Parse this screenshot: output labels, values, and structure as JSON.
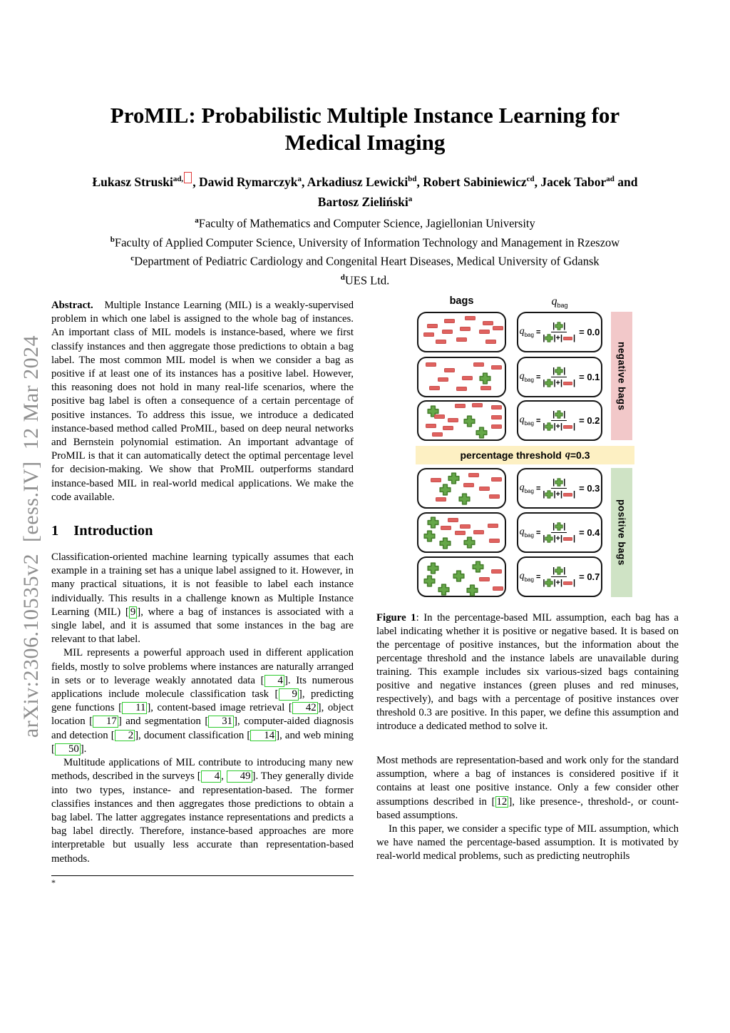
{
  "arxiv_sidebar": "arXiv:2306.10535v2  [eess.IV]  12 Mar 2024",
  "title": {
    "line1": "ProMIL: Probabilistic Multiple Instance Learning for",
    "line2": "Medical Imaging"
  },
  "authors": {
    "line1": [
      {
        "t": "Łukasz Struski"
      },
      {
        "sup": "ad,"
      },
      {
        "redbox": true
      },
      {
        "t": ", Dawid Rymarczyk"
      },
      {
        "sup": "a"
      },
      {
        "t": ", Arkadiusz Lewicki"
      },
      {
        "sup": "bd"
      },
      {
        "t": ", Robert Sabiniewicz"
      },
      {
        "sup": "cd"
      },
      {
        "t": ", Jacek Tabor"
      },
      {
        "sup": "ad"
      },
      {
        "t": " and"
      }
    ],
    "line2": [
      {
        "t": "Bartosz Zieliński"
      },
      {
        "sup": "a"
      }
    ]
  },
  "affiliations": [
    [
      {
        "sup": "a"
      },
      {
        "t": "Faculty of Mathematics and Computer Science, Jagiellonian University"
      }
    ],
    [
      {
        "sup": "b"
      },
      {
        "t": "Faculty of Applied Computer Science, University of Information Technology and Management in Rzeszow"
      }
    ],
    [
      {
        "sup": "c"
      },
      {
        "t": "Department of Pediatric Cardiology and Congenital Heart Diseases, Medical University of Gdansk"
      }
    ],
    [
      {
        "sup": "d"
      },
      {
        "t": "UES Ltd."
      }
    ]
  ],
  "abstract": [
    {
      "b": "Abstract."
    },
    {
      "t": "   Multiple Instance Learning (MIL) is a weakly-supervised problem in which one label is assigned to the whole bag of instances. An important class of MIL models is instance-based, where we first classify instances and then aggregate those predictions to obtain a bag label. The most common MIL model is when we consider a bag as positive if at least one of its instances has a positive label. However, this reasoning does not hold in many real-life scenarios, where the positive bag label is often a consequence of a certain percentage of positive instances. To address this issue, we introduce a dedicated instance-based method called ProMIL, based on deep neural networks and Bernstein polynomial estimation. An important advantage of ProMIL is that it can automatically detect the optimal percentage level for decision-making. We show that ProMIL outperforms standard instance-based MIL in real-world medical applications. We make the code available."
    }
  ],
  "introduction": {
    "number": "1",
    "title": "Introduction",
    "paragraphs": [
      [
        {
          "t": "Classification-oriented machine learning typically assumes that each example in a training set has a unique label assigned to it. However, in many practical situations, it is not feasible to label each instance individually. This results in a challenge known as Multiple Instance Learning (MIL) ["
        },
        {
          "cite": "9"
        },
        {
          "t": "], where a bag of instances is associated with a single label, and it is assumed that some instances in the bag are relevant to that label."
        }
      ],
      [
        {
          "t": "MIL represents a powerful approach used in different application fields, mostly to solve problems where instances are naturally arranged in sets or to leverage weakly annotated data ["
        },
        {
          "cite": "4"
        },
        {
          "t": "]. Its numerous applications include molecule classification task ["
        },
        {
          "cite": "9"
        },
        {
          "t": "], predicting gene functions ["
        },
        {
          "cite": "11"
        },
        {
          "t": "], content-based image retrieval ["
        },
        {
          "cite": "42"
        },
        {
          "t": "], object location ["
        },
        {
          "cite": "17"
        },
        {
          "t": "] and segmentation ["
        },
        {
          "cite": "31"
        },
        {
          "t": "], computer-aided diagnosis and detection ["
        },
        {
          "cite": "2"
        },
        {
          "t": "], document classification ["
        },
        {
          "cite": "14"
        },
        {
          "t": "], and web mining ["
        },
        {
          "cite": "50"
        },
        {
          "t": "]."
        }
      ],
      [
        {
          "t": "Multitude applications of MIL contribute to introducing many new methods, described in the surveys ["
        },
        {
          "cite": "4"
        },
        {
          "t": ", "
        },
        {
          "cite": "49"
        },
        {
          "t": "]. They generally divide into two types, instance- and representation-based. The former classifies instances and then aggregates those predictions to obtain a bag label. The latter aggregates instance representations and predicts a bag label directly. Therefore, instance-based approaches are more interpretable but usually less accurate than representation-based methods."
        }
      ]
    ]
  },
  "footnote_marker": "*",
  "figure": {
    "header_bags": "bags",
    "qbag_base": "q",
    "qbag_sub": "bag",
    "threshold_text": "percentage threshold",
    "threshold_q": "q",
    "threshold_value": "=0.3",
    "negative_label": "negative bags",
    "positive_label": "positive bags",
    "formula": {
      "lhs_base": "q",
      "lhs_sub": "bag",
      "eq": "=",
      "result_eq": "="
    },
    "rows": [
      {
        "group": "negative",
        "q": "0.0",
        "items": [
          {
            "x": 10,
            "y": 28,
            "k": "m"
          },
          {
            "x": 30,
            "y": 16,
            "k": "m"
          },
          {
            "x": 54,
            "y": 8,
            "k": "m"
          },
          {
            "x": 74,
            "y": 20,
            "k": "m"
          },
          {
            "x": 6,
            "y": 50,
            "k": "m"
          },
          {
            "x": 27,
            "y": 44,
            "k": "m"
          },
          {
            "x": 48,
            "y": 36,
            "k": "m"
          },
          {
            "x": 70,
            "y": 44,
            "k": "m"
          },
          {
            "x": 86,
            "y": 34,
            "k": "m"
          },
          {
            "x": 20,
            "y": 70,
            "k": "m"
          },
          {
            "x": 44,
            "y": 64,
            "k": "m"
          },
          {
            "x": 78,
            "y": 70,
            "k": "m"
          }
        ]
      },
      {
        "group": "negative",
        "q": "0.1",
        "items": [
          {
            "x": 8,
            "y": 12,
            "k": "m"
          },
          {
            "x": 30,
            "y": 26,
            "k": "m"
          },
          {
            "x": 64,
            "y": 12,
            "k": "m"
          },
          {
            "x": 84,
            "y": 18,
            "k": "m"
          },
          {
            "x": 22,
            "y": 50,
            "k": "m"
          },
          {
            "x": 50,
            "y": 48,
            "k": "m"
          },
          {
            "x": 70,
            "y": 38,
            "k": "p"
          },
          {
            "x": 12,
            "y": 74,
            "k": "m"
          },
          {
            "x": 44,
            "y": 76,
            "k": "m"
          },
          {
            "x": 72,
            "y": 74,
            "k": "m"
          }
        ]
      },
      {
        "group": "negative",
        "q": "0.2",
        "items": [
          {
            "x": 10,
            "y": 10,
            "k": "p"
          },
          {
            "x": 42,
            "y": 6,
            "k": "m"
          },
          {
            "x": 62,
            "y": 4,
            "k": "m"
          },
          {
            "x": 84,
            "y": 10,
            "k": "m"
          },
          {
            "x": 18,
            "y": 34,
            "k": "m"
          },
          {
            "x": 34,
            "y": 44,
            "k": "m"
          },
          {
            "x": 52,
            "y": 36,
            "k": "p"
          },
          {
            "x": 84,
            "y": 36,
            "k": "m"
          },
          {
            "x": 8,
            "y": 58,
            "k": "m"
          },
          {
            "x": 28,
            "y": 64,
            "k": "m"
          },
          {
            "x": 66,
            "y": 66,
            "k": "p"
          },
          {
            "x": 16,
            "y": 82,
            "k": "m"
          },
          {
            "x": 84,
            "y": 60,
            "k": "m"
          }
        ]
      },
      {
        "group": "positive",
        "q": "0.3",
        "items": [
          {
            "x": 34,
            "y": 8,
            "k": "p"
          },
          {
            "x": 14,
            "y": 22,
            "k": "m"
          },
          {
            "x": 58,
            "y": 10,
            "k": "m"
          },
          {
            "x": 84,
            "y": 20,
            "k": "m"
          },
          {
            "x": 24,
            "y": 38,
            "k": "p"
          },
          {
            "x": 52,
            "y": 36,
            "k": "m"
          },
          {
            "x": 70,
            "y": 46,
            "k": "m"
          },
          {
            "x": 46,
            "y": 62,
            "k": "p"
          },
          {
            "x": 20,
            "y": 74,
            "k": "m"
          },
          {
            "x": 82,
            "y": 66,
            "k": "m"
          }
        ]
      },
      {
        "group": "positive",
        "q": "0.4",
        "items": [
          {
            "x": 10,
            "y": 8,
            "k": "p"
          },
          {
            "x": 34,
            "y": 12,
            "k": "m"
          },
          {
            "x": 26,
            "y": 32,
            "k": "m"
          },
          {
            "x": 48,
            "y": 28,
            "k": "m"
          },
          {
            "x": 80,
            "y": 26,
            "k": "m"
          },
          {
            "x": 6,
            "y": 44,
            "k": "p"
          },
          {
            "x": 64,
            "y": 44,
            "k": "m"
          },
          {
            "x": 42,
            "y": 46,
            "k": "m"
          },
          {
            "x": 24,
            "y": 62,
            "k": "p"
          },
          {
            "x": 52,
            "y": 60,
            "k": "p"
          },
          {
            "x": 82,
            "y": 66,
            "k": "m"
          }
        ]
      },
      {
        "group": "positive",
        "q": "0.7",
        "items": [
          {
            "x": 10,
            "y": 12,
            "k": "p"
          },
          {
            "x": 62,
            "y": 8,
            "k": "p"
          },
          {
            "x": 40,
            "y": 32,
            "k": "p"
          },
          {
            "x": 6,
            "y": 46,
            "k": "p"
          },
          {
            "x": 22,
            "y": 68,
            "k": "p"
          },
          {
            "x": 55,
            "y": 70,
            "k": "p"
          },
          {
            "x": 84,
            "y": 30,
            "k": "m"
          },
          {
            "x": 70,
            "y": 50,
            "k": "m"
          },
          {
            "x": 86,
            "y": 76,
            "k": "m"
          }
        ]
      }
    ]
  },
  "caption": [
    {
      "b": "Figure 1"
    },
    {
      "t": ": In the percentage-based MIL assumption, each bag has a label indicating whether it is positive or negative based. It is based on the percentage of positive instances, but the information about the percentage threshold and the instance labels are unavailable during training. This example includes six various-sized bags containing positive and negative instances (green pluses and red minuses, respectively), and bags with a percentage of positive instances over threshold 0.3 are positive. In this paper, we define this assumption and introduce a dedicated method to solve it."
    }
  ],
  "right_paragraphs": [
    [
      {
        "t": "Most methods are representation-based and work only for the standard assumption, where a bag of instances is considered positive if it contains at least one positive instance. Only a few consider other assumptions described in ["
      },
      {
        "cite": "12"
      },
      {
        "t": "], like presence-, threshold-, or count-based assumptions."
      }
    ],
    [
      {
        "t": "In this paper, we consider a specific type of MIL assumption, which we have named the percentage-based assumption. It is motivated by real-world medical problems, such as predicting neutrophils"
      }
    ]
  ],
  "colors": {
    "plus_green": "#65a748",
    "plus_green_border": "#477f2e",
    "minus_red": "#e0625f",
    "minus_red_border": "#c9504e",
    "negative_strip_pink": "#f2c8c9",
    "positive_strip_green": "#cfe3c5",
    "threshold_band_yellow": "#fdf0c3",
    "citation_green": "#2ecc2e",
    "link_red": "#e03a3a",
    "watermark_gray": "#8f8f8f"
  }
}
